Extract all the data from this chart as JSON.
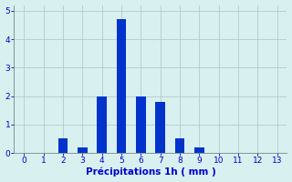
{
  "values": [
    0,
    0,
    0.5,
    0.2,
    2.0,
    4.7,
    2.0,
    1.8,
    0.5,
    0.2,
    0,
    0,
    0,
    0
  ],
  "xlim": [
    -0.5,
    13.5
  ],
  "ylim": [
    0,
    5.2
  ],
  "yticks": [
    0,
    1,
    2,
    3,
    4,
    5
  ],
  "xticks": [
    0,
    1,
    2,
    3,
    4,
    5,
    6,
    7,
    8,
    9,
    10,
    11,
    12,
    13
  ],
  "xlabel": "Précipitations 1h ( mm )",
  "bar_color": "#0033cc",
  "bg_color": "#d8f0f0",
  "grid_color": "#b0cccc",
  "text_color": "#0000cc",
  "bar_width": 0.5
}
